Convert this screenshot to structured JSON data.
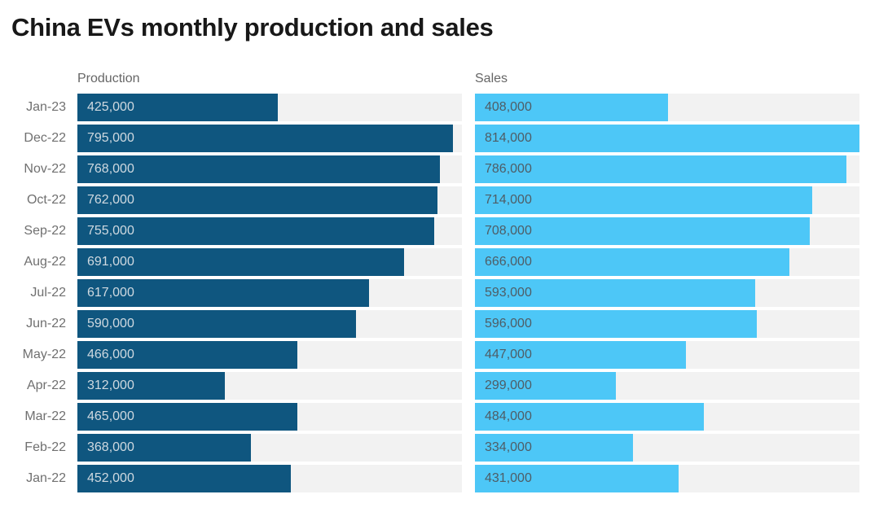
{
  "title": "China EVs monthly production and sales",
  "columns": {
    "production_header": "Production",
    "sales_header": "Sales"
  },
  "colors": {
    "title_text": "#181818",
    "header_text": "#666666",
    "month_label_text": "#707070",
    "track": "#f2f2f2",
    "production_bar": "#0f567f",
    "sales_bar": "#4dc7f7",
    "production_value_text": "#cfd9e0",
    "sales_value_text": "#4e5d66"
  },
  "chart_data": {
    "type": "bar",
    "orientation": "horizontal",
    "title": "China EVs monthly production and sales",
    "categories": [
      "Jan-23",
      "Dec-22",
      "Nov-22",
      "Oct-22",
      "Sep-22",
      "Aug-22",
      "Jul-22",
      "Jun-22",
      "May-22",
      "Apr-22",
      "Mar-22",
      "Feb-22",
      "Jan-22"
    ],
    "series": [
      {
        "name": "Production",
        "color": "#0f567f",
        "values": [
          425000,
          795000,
          768000,
          762000,
          755000,
          691000,
          617000,
          590000,
          466000,
          312000,
          465000,
          368000,
          452000
        ]
      },
      {
        "name": "Sales",
        "color": "#4dc7f7",
        "values": [
          408000,
          814000,
          786000,
          714000,
          708000,
          666000,
          593000,
          596000,
          447000,
          299000,
          484000,
          334000,
          431000
        ]
      }
    ],
    "xlim": [
      0,
      814000
    ],
    "value_labels": "inside-bar-start, thousands comma format",
    "legend_position": "column headers above each bar group",
    "grid": false
  }
}
